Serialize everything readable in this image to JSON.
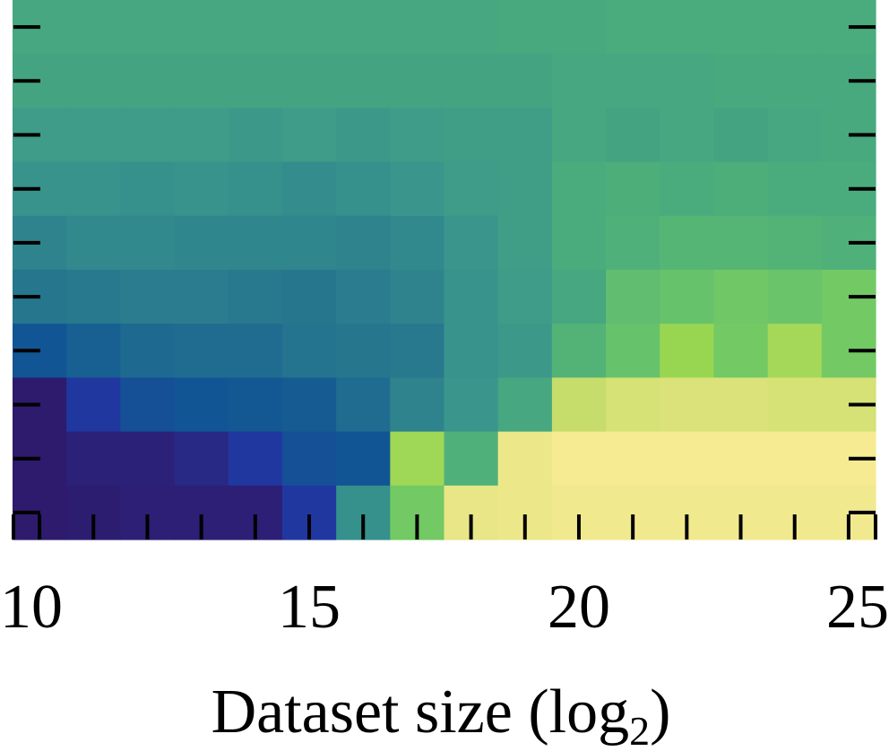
{
  "chart_data": {
    "type": "heatmap",
    "title": "",
    "xlabel": "Dataset size (log",
    "xlabel_subscript": "2",
    "xlabel_suffix": ")",
    "ylabel": "",
    "x": [
      10,
      11,
      12,
      13,
      14,
      15,
      16,
      17,
      18,
      19,
      20,
      21,
      22,
      23,
      24,
      25
    ],
    "xlim": [
      10,
      25
    ],
    "xticks": [
      10,
      15,
      20,
      25
    ],
    "xtick_labels": [
      "10",
      "15",
      "20",
      "25"
    ],
    "colormap": "viridis",
    "value_range": [
      0,
      1
    ],
    "rows_top_to_bottom": [
      [
        0.56,
        0.56,
        0.56,
        0.56,
        0.56,
        0.56,
        0.56,
        0.56,
        0.56,
        0.57,
        0.57,
        0.58,
        0.58,
        0.58,
        0.58,
        0.58
      ],
      [
        0.55,
        0.55,
        0.55,
        0.55,
        0.55,
        0.55,
        0.55,
        0.55,
        0.55,
        0.55,
        0.56,
        0.56,
        0.56,
        0.57,
        0.57,
        0.57
      ],
      [
        0.52,
        0.52,
        0.52,
        0.52,
        0.51,
        0.52,
        0.51,
        0.52,
        0.53,
        0.53,
        0.56,
        0.55,
        0.56,
        0.55,
        0.56,
        0.57
      ],
      [
        0.49,
        0.49,
        0.48,
        0.49,
        0.48,
        0.47,
        0.48,
        0.5,
        0.52,
        0.53,
        0.58,
        0.59,
        0.58,
        0.59,
        0.58,
        0.58
      ],
      [
        0.44,
        0.46,
        0.46,
        0.45,
        0.45,
        0.45,
        0.44,
        0.46,
        0.5,
        0.53,
        0.58,
        0.6,
        0.62,
        0.62,
        0.61,
        0.6
      ],
      [
        0.4,
        0.41,
        0.42,
        0.42,
        0.41,
        0.4,
        0.42,
        0.44,
        0.49,
        0.52,
        0.56,
        0.66,
        0.68,
        0.71,
        0.69,
        0.72
      ],
      [
        0.3,
        0.33,
        0.36,
        0.37,
        0.37,
        0.39,
        0.4,
        0.41,
        0.49,
        0.51,
        0.61,
        0.68,
        0.82,
        0.72,
        0.84,
        0.72
      ],
      [
        0.05,
        0.2,
        0.28,
        0.3,
        0.31,
        0.32,
        0.37,
        0.44,
        0.5,
        0.56,
        0.89,
        0.92,
        0.93,
        0.93,
        0.92,
        0.92
      ],
      [
        0.05,
        0.08,
        0.08,
        0.12,
        0.2,
        0.28,
        0.3,
        0.83,
        0.6,
        0.97,
        0.99,
        0.99,
        0.99,
        0.99,
        0.99,
        0.99
      ],
      [
        0.05,
        0.06,
        0.07,
        0.07,
        0.07,
        0.2,
        0.48,
        0.72,
        0.96,
        0.97,
        0.98,
        0.98,
        0.98,
        0.98,
        0.98,
        0.98
      ]
    ],
    "y_tick_count": 10,
    "grid": false,
    "legend": "none"
  }
}
